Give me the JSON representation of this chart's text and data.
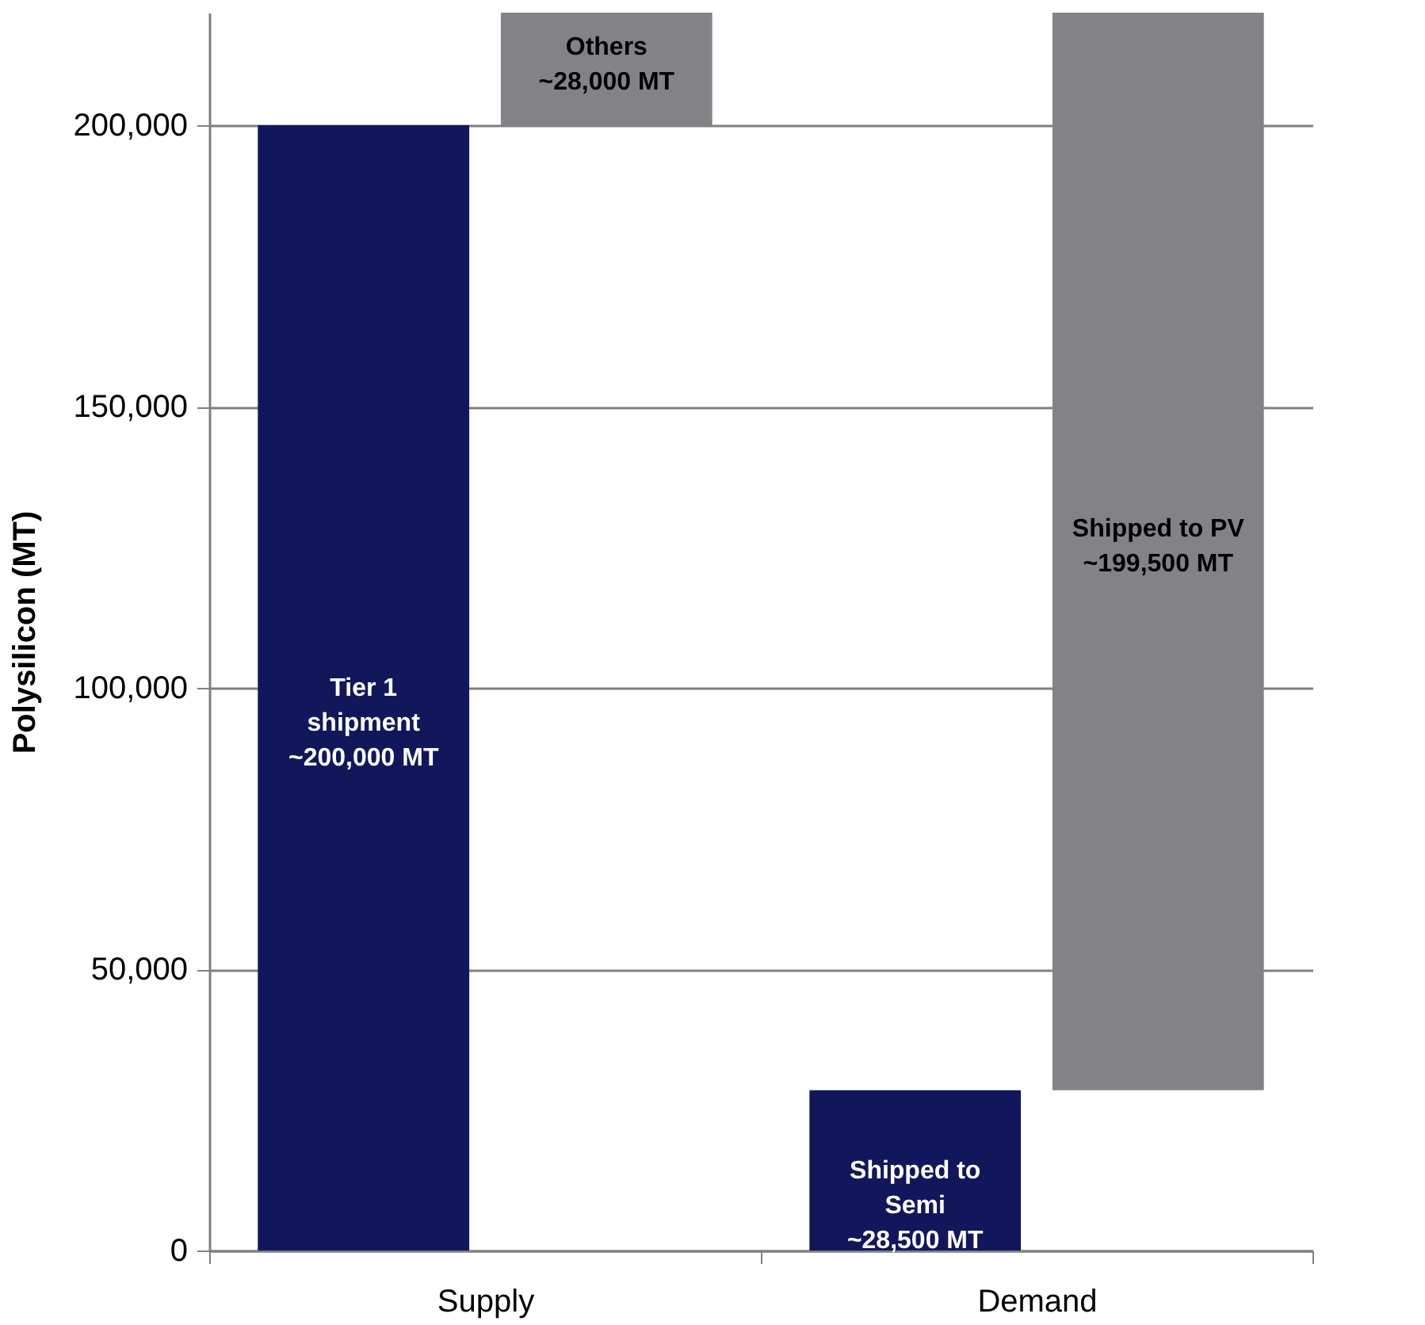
{
  "chart_data": {
    "type": "bar",
    "ylabel": "Polysilicon (MT)",
    "categories": [
      "Supply",
      "Demand"
    ],
    "series": [
      {
        "color": "#12175c",
        "values": [
          200000,
          28500
        ],
        "base": [
          0,
          0
        ],
        "value_labels": [
          "Tier 1\nshipment\n~200,000 MT",
          "Shipped to\nSemi\n~28,500 MT"
        ]
      },
      {
        "color": "#838387",
        "values": [
          28000,
          199500
        ],
        "base": [
          200000,
          28500
        ],
        "value_labels": [
          "Others\n~28,000 MT",
          "Shipped to PV\n~199,500 MT"
        ]
      }
    ],
    "ylim": [
      0,
      220000
    ],
    "yticks": [
      0,
      {
        "value": 50000,
        "label": "50,000"
      },
      {
        "value": 100000,
        "label": "100,000"
      },
      {
        "value": 150000,
        "label": "150,000"
      },
      {
        "value": 200000,
        "label": "200,000"
      }
    ],
    "grid": "y",
    "legend": false
  }
}
